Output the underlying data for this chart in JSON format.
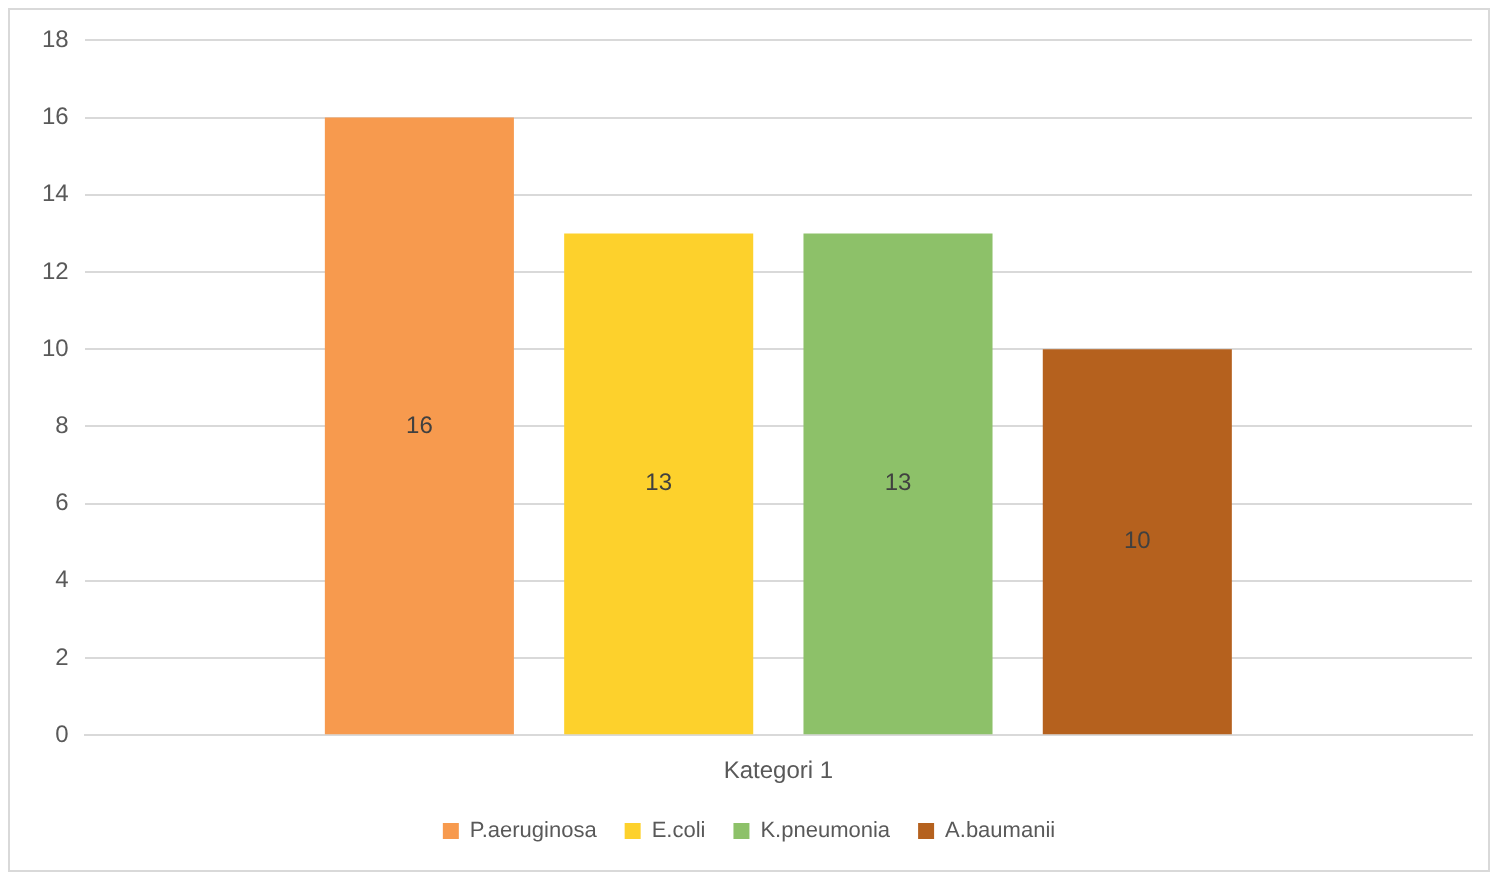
{
  "chart_data": {
    "type": "bar",
    "categories": [
      "Kategori 1"
    ],
    "series": [
      {
        "name": "P.aeruginosa",
        "color": "#f79a4e",
        "values": [
          16
        ]
      },
      {
        "name": "E.coli",
        "color": "#fdd12c",
        "values": [
          13
        ]
      },
      {
        "name": "K.pneumonia",
        "color": "#8dc169",
        "values": [
          13
        ]
      },
      {
        "name": "A.baumanii",
        "color": "#b5611e",
        "values": [
          10
        ]
      }
    ],
    "ylim": [
      0,
      18
    ],
    "yticks": [
      0,
      2,
      4,
      6,
      8,
      10,
      12,
      14,
      16,
      18
    ],
    "grid": "y",
    "legend": "bottom",
    "data_labels": true
  }
}
